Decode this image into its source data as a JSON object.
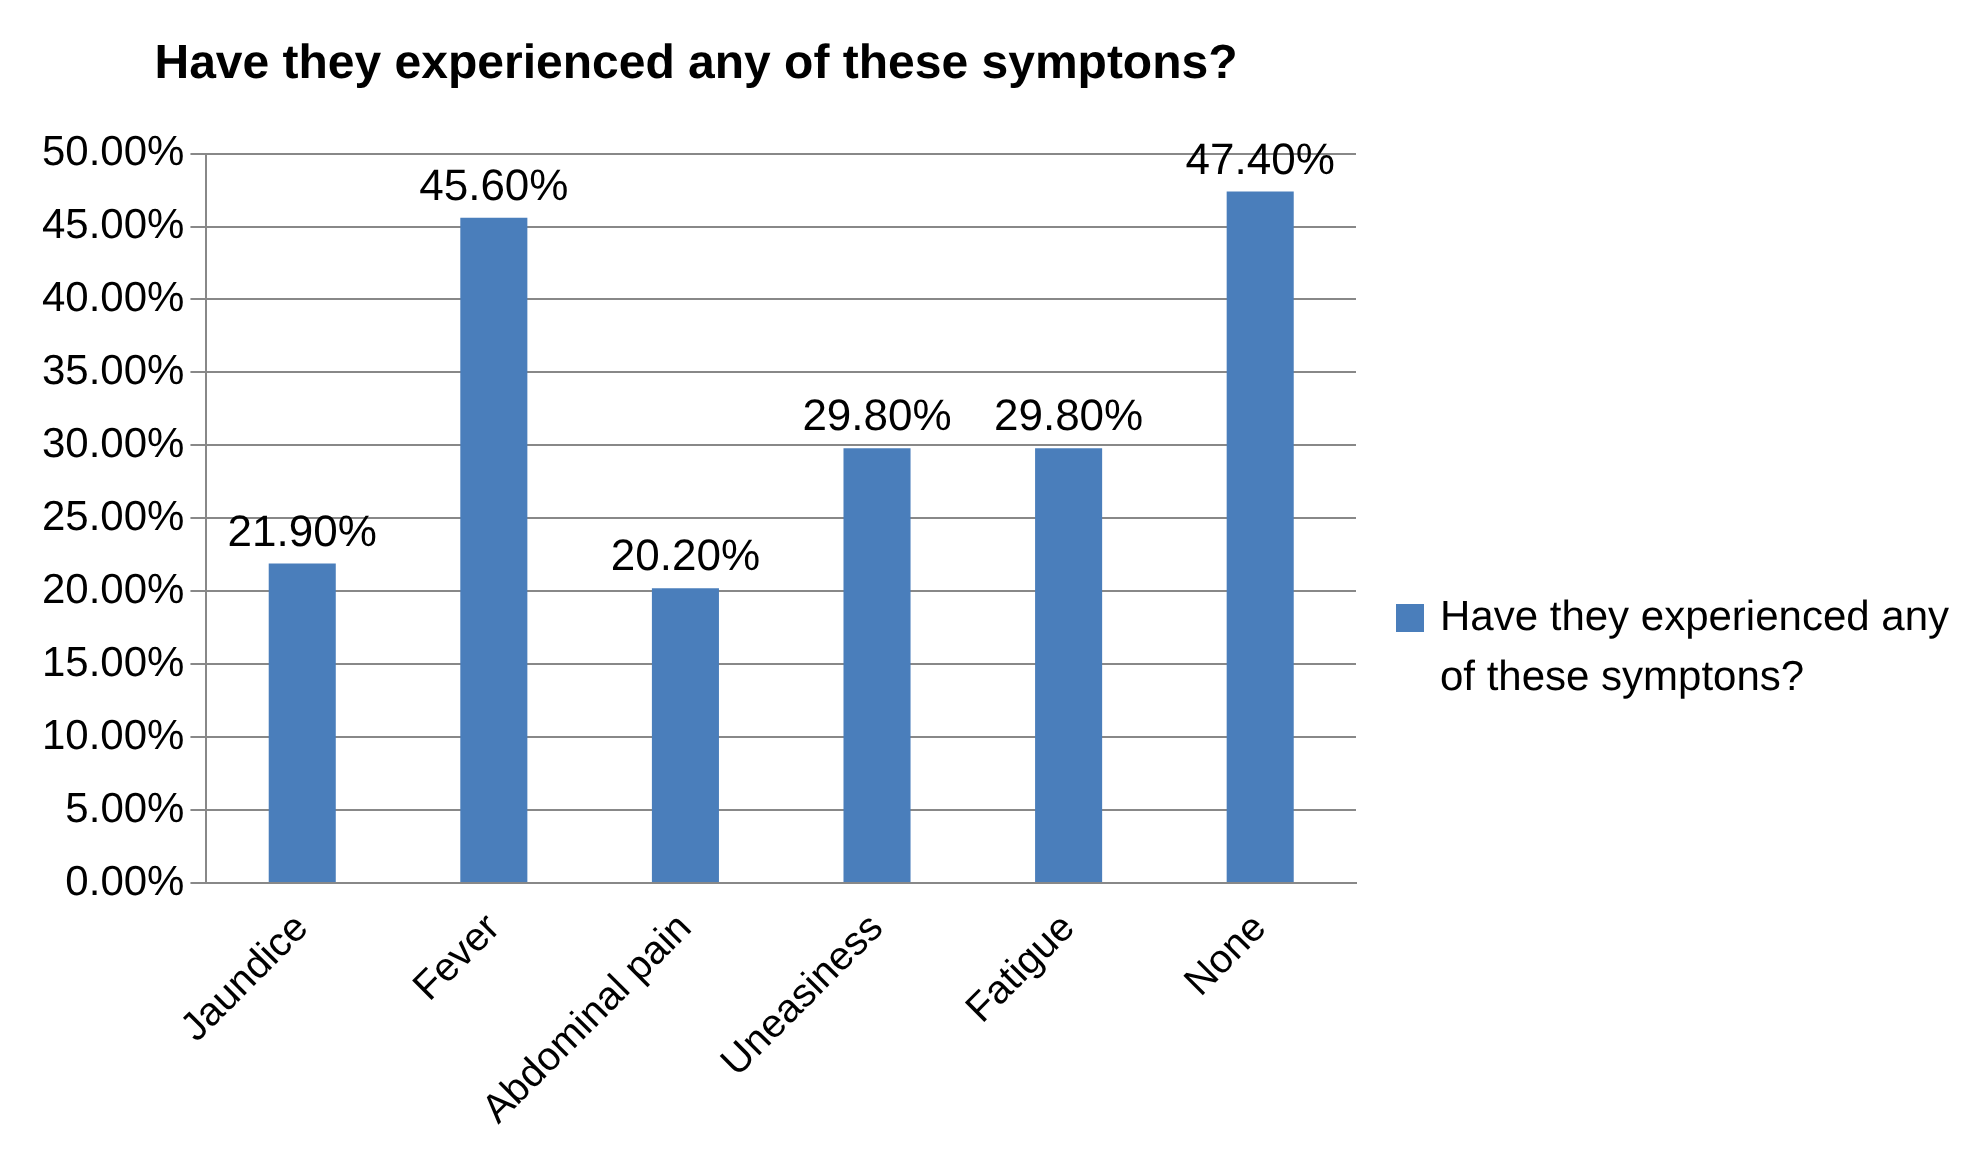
{
  "chart_data": {
    "type": "bar",
    "title": "Have they experienced any of these symptons?",
    "categories": [
      "Jaundice",
      "Fever",
      "Abdominal pain",
      "Uneasiness",
      "Fatigue",
      "None"
    ],
    "series": [
      {
        "name": "Have they experienced any of these symptons?",
        "color": "#4a7ebb",
        "values": [
          21.9,
          45.6,
          20.2,
          29.8,
          29.8,
          47.4
        ],
        "value_labels": [
          "21.90%",
          "45.60%",
          "20.20%",
          "29.80%",
          "29.80%",
          "47.40%"
        ]
      }
    ],
    "ylim": [
      0,
      50
    ],
    "yticks": [
      {
        "value": 0,
        "label": "0.00%"
      },
      {
        "value": 5,
        "label": "5.00%"
      },
      {
        "value": 10,
        "label": "10.00%"
      },
      {
        "value": 15,
        "label": "15.00%"
      },
      {
        "value": 20,
        "label": "20.00%"
      },
      {
        "value": 25,
        "label": "25.00%"
      },
      {
        "value": 30,
        "label": "30.00%"
      },
      {
        "value": 35,
        "label": "35.00%"
      },
      {
        "value": 40,
        "label": "40.00%"
      },
      {
        "value": 45,
        "label": "45.00%"
      },
      {
        "value": 50,
        "label": "50.00%"
      }
    ],
    "grid": "y",
    "legend": "right"
  }
}
